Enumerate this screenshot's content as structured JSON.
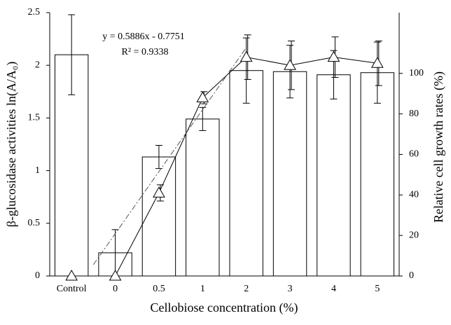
{
  "chart_data": {
    "type": "bar-line",
    "categories": [
      "Control",
      "0",
      "0.5",
      "1",
      "2",
      "3",
      "4",
      "5"
    ],
    "x_label": "Cellobiose concentration (%)",
    "y_label": "β-glucosidase activities ln(A/A₀)",
    "y2_label": "Relative cell growth rates (%)",
    "ylim": [
      0,
      2.5
    ],
    "yticks": [
      0,
      0.5,
      1,
      1.5,
      2,
      2.5
    ],
    "y2lim": [
      0,
      130
    ],
    "y2ticks": [
      0,
      20,
      40,
      60,
      80,
      100
    ],
    "annotations": [
      "y = 0.5886x - 0.7751",
      "R² = 0.9338"
    ],
    "series": [
      {
        "type": "bar",
        "color": "#ffffff",
        "values": [
          2.1,
          0.22,
          1.13,
          1.49,
          1.95,
          1.94,
          1.91,
          1.93
        ],
        "errors": [
          0.38,
          0.22,
          0.11,
          0.11,
          0.31,
          0.25,
          0.23,
          0.29
        ]
      },
      {
        "type": "line",
        "axis": "y2",
        "color": "#000000",
        "values": [
          0,
          0,
          41,
          88,
          108,
          104,
          108,
          105
        ],
        "errors": [
          0,
          0,
          4,
          3,
          11,
          12,
          10,
          11
        ]
      }
    ]
  }
}
